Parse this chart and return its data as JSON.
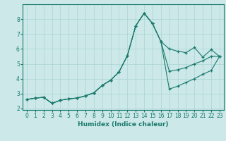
{
  "xlabel": "Humidex (Indice chaleur)",
  "background_color": "#cce8e8",
  "grid_color": "#aad4d4",
  "line_color": "#1a7a6e",
  "xlim": [
    -0.5,
    23.5
  ],
  "ylim": [
    1.9,
    9.0
  ],
  "yticks": [
    2,
    3,
    4,
    5,
    6,
    7,
    8
  ],
  "xticks": [
    0,
    1,
    2,
    3,
    4,
    5,
    6,
    7,
    8,
    9,
    10,
    11,
    12,
    13,
    14,
    15,
    16,
    17,
    18,
    19,
    20,
    21,
    22,
    23
  ],
  "curve1_x": [
    0,
    1,
    2,
    3,
    4,
    5,
    6,
    7,
    8,
    9,
    10,
    11,
    12,
    13,
    14,
    15,
    16,
    17,
    18,
    19,
    20,
    21,
    22,
    23
  ],
  "curve1_y": [
    2.6,
    2.7,
    2.75,
    2.35,
    2.55,
    2.65,
    2.7,
    2.85,
    3.05,
    3.55,
    3.9,
    4.45,
    5.55,
    7.55,
    8.4,
    7.7,
    6.5,
    6.0,
    5.85,
    5.75,
    6.1,
    5.45,
    5.95,
    5.5
  ],
  "curve2_x": [
    0,
    1,
    2,
    3,
    4,
    5,
    6,
    7,
    8,
    9,
    10,
    11,
    12,
    13,
    14,
    15,
    16,
    17,
    18,
    19,
    20,
    21,
    22,
    23
  ],
  "curve2_y": [
    2.6,
    2.7,
    2.75,
    2.35,
    2.55,
    2.65,
    2.7,
    2.85,
    3.05,
    3.55,
    3.9,
    4.45,
    5.55,
    7.55,
    8.4,
    7.7,
    6.5,
    4.5,
    4.6,
    4.75,
    5.0,
    5.2,
    5.5,
    5.5
  ],
  "curve3_x": [
    0,
    1,
    2,
    3,
    4,
    5,
    6,
    7,
    8,
    9,
    10,
    11,
    12,
    13,
    14,
    15,
    16,
    17,
    18,
    19,
    20,
    21,
    22,
    23
  ],
  "curve3_y": [
    2.6,
    2.7,
    2.75,
    2.35,
    2.55,
    2.65,
    2.7,
    2.85,
    3.05,
    3.55,
    3.9,
    4.45,
    5.55,
    7.55,
    8.4,
    7.7,
    6.5,
    3.3,
    3.5,
    3.75,
    4.0,
    4.3,
    4.55,
    5.5
  ]
}
